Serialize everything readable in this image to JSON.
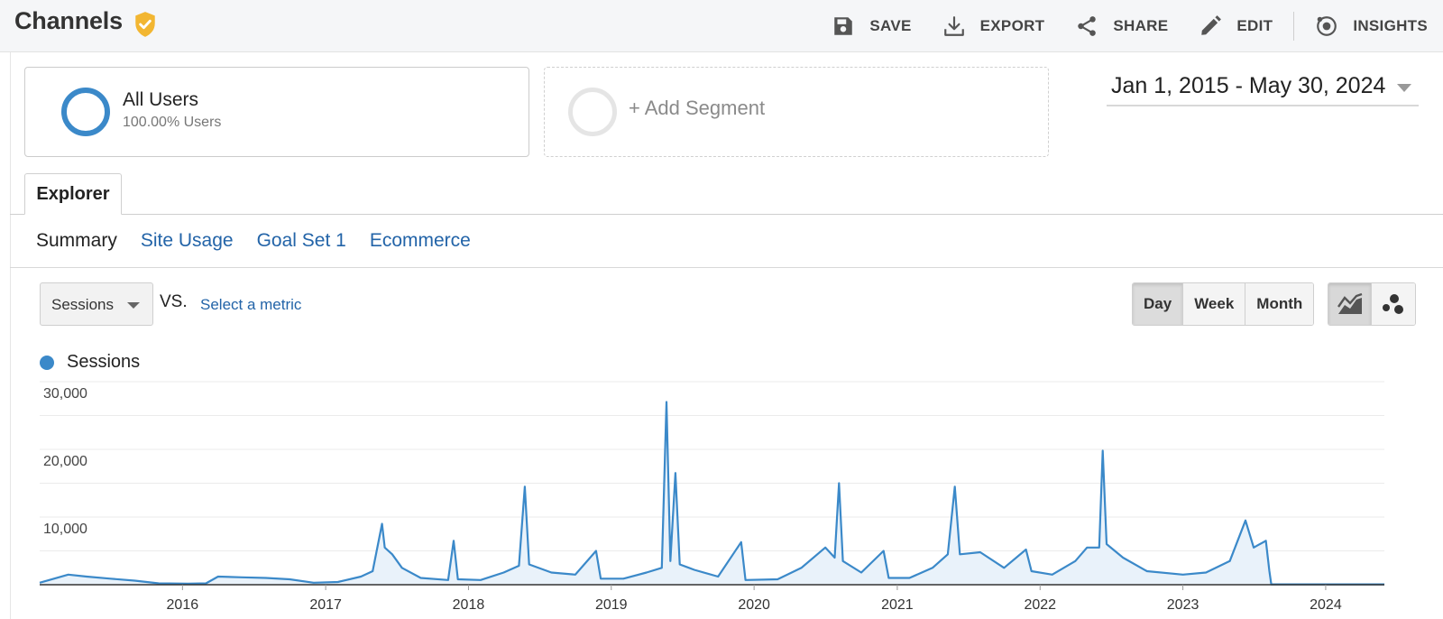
{
  "header": {
    "title": "Channels",
    "toolbar": [
      {
        "label": "SAVE",
        "icon": "save-icon"
      },
      {
        "label": "EXPORT",
        "icon": "export-icon"
      },
      {
        "label": "SHARE",
        "icon": "share-icon"
      },
      {
        "label": "EDIT",
        "icon": "edit-icon"
      },
      {
        "label": "INSIGHTS",
        "icon": "insights-icon"
      }
    ]
  },
  "segments": {
    "all_users": {
      "name": "All Users",
      "subtitle": "100.00% Users"
    },
    "add_segment": {
      "label": "+ Add Segment"
    }
  },
  "date_range": "Jan 1, 2015 - May 30, 2024",
  "tabs": {
    "explorer": "Explorer"
  },
  "subtabs": [
    "Summary",
    "Site Usage",
    "Goal Set 1",
    "Ecommerce"
  ],
  "controls": {
    "metric": "Sessions",
    "vs": "VS.",
    "select_metric": "Select a metric",
    "granularity": [
      "Day",
      "Week",
      "Month"
    ],
    "granularity_selected": "Day"
  },
  "colors": {
    "series": "#3b89c9",
    "fill": "#e9f2fa",
    "link": "#2364a8",
    "badge": "#f2b632"
  },
  "chart_data": {
    "type": "line",
    "title": "",
    "series": [
      {
        "name": "Sessions"
      }
    ],
    "xlabel": "",
    "ylabel": "",
    "y_ticks": [
      "10,000",
      "20,000",
      "30,000"
    ],
    "y_tick_values": [
      10000,
      20000,
      30000
    ],
    "ylim": [
      0,
      30000
    ],
    "x_ticks": [
      "2016",
      "2017",
      "2018",
      "2019",
      "2020",
      "2021",
      "2022",
      "2023",
      "2024"
    ],
    "x_range": [
      "2015-01-01",
      "2024-05-30"
    ],
    "points": [
      [
        "2015-01-01",
        300
      ],
      [
        "2015-03-15",
        1500
      ],
      [
        "2015-05-01",
        1200
      ],
      [
        "2015-07-01",
        900
      ],
      [
        "2015-09-01",
        600
      ],
      [
        "2015-11-01",
        200
      ],
      [
        "2016-01-15",
        150
      ],
      [
        "2016-03-01",
        200
      ],
      [
        "2016-04-01",
        1200
      ],
      [
        "2016-06-01",
        1100
      ],
      [
        "2016-08-01",
        1000
      ],
      [
        "2016-10-01",
        800
      ],
      [
        "2016-12-01",
        300
      ],
      [
        "2017-02-01",
        400
      ],
      [
        "2017-04-01",
        1200
      ],
      [
        "2017-05-01",
        2000
      ],
      [
        "2017-05-25",
        9000
      ],
      [
        "2017-06-01",
        5500
      ],
      [
        "2017-06-20",
        4500
      ],
      [
        "2017-07-15",
        2500
      ],
      [
        "2017-09-01",
        1000
      ],
      [
        "2017-11-10",
        700
      ],
      [
        "2017-11-24",
        6500
      ],
      [
        "2017-12-05",
        800
      ],
      [
        "2018-02-01",
        700
      ],
      [
        "2018-04-01",
        1800
      ],
      [
        "2018-05-10",
        2800
      ],
      [
        "2018-05-25",
        14500
      ],
      [
        "2018-06-05",
        3000
      ],
      [
        "2018-08-01",
        1800
      ],
      [
        "2018-10-01",
        1500
      ],
      [
        "2018-11-23",
        5000
      ],
      [
        "2018-12-05",
        900
      ],
      [
        "2019-02-01",
        900
      ],
      [
        "2019-04-01",
        1800
      ],
      [
        "2019-05-10",
        2500
      ],
      [
        "2019-05-22",
        27000
      ],
      [
        "2019-06-01",
        3500
      ],
      [
        "2019-06-14",
        16500
      ],
      [
        "2019-06-25",
        3000
      ],
      [
        "2019-08-01",
        2200
      ],
      [
        "2019-10-01",
        1200
      ],
      [
        "2019-11-29",
        6300
      ],
      [
        "2019-12-10",
        700
      ],
      [
        "2020-03-01",
        800
      ],
      [
        "2020-05-01",
        2500
      ],
      [
        "2020-07-01",
        5500
      ],
      [
        "2020-07-25",
        4000
      ],
      [
        "2020-08-05",
        15000
      ],
      [
        "2020-08-15",
        3500
      ],
      [
        "2020-10-01",
        1800
      ],
      [
        "2020-11-27",
        5000
      ],
      [
        "2020-12-10",
        1000
      ],
      [
        "2021-02-01",
        1000
      ],
      [
        "2021-04-01",
        2500
      ],
      [
        "2021-05-10",
        4500
      ],
      [
        "2021-05-28",
        14500
      ],
      [
        "2021-06-10",
        4500
      ],
      [
        "2021-08-01",
        4800
      ],
      [
        "2021-10-01",
        2500
      ],
      [
        "2021-11-26",
        5200
      ],
      [
        "2021-12-10",
        2000
      ],
      [
        "2022-02-01",
        1500
      ],
      [
        "2022-04-01",
        3500
      ],
      [
        "2022-05-01",
        5500
      ],
      [
        "2022-06-01",
        5500
      ],
      [
        "2022-06-10",
        19800
      ],
      [
        "2022-06-20",
        6000
      ],
      [
        "2022-08-01",
        4000
      ],
      [
        "2022-10-01",
        2000
      ],
      [
        "2023-01-01",
        1500
      ],
      [
        "2023-03-01",
        1800
      ],
      [
        "2023-05-01",
        3500
      ],
      [
        "2023-06-10",
        9500
      ],
      [
        "2023-07-01",
        5500
      ],
      [
        "2023-08-01",
        6500
      ],
      [
        "2023-08-10",
        2000
      ],
      [
        "2023-08-15",
        50
      ],
      [
        "2024-05-30",
        50
      ]
    ],
    "grid": true
  }
}
